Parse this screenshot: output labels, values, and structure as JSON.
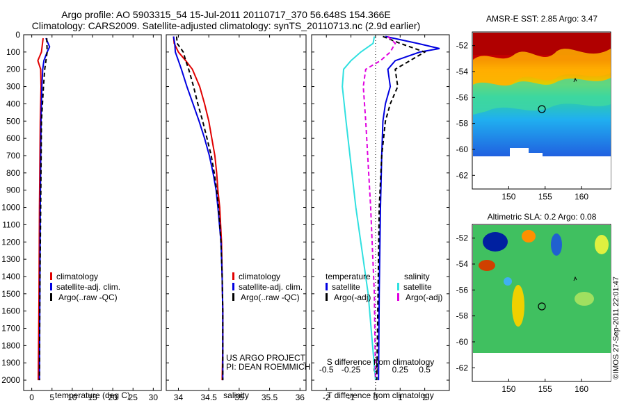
{
  "header": {
    "line1": "Argo profile: AO 5903315_54 15-Jul-2011 20110717_370 56.648S 154.366E",
    "line2": "Climatology: CARS2009. Satellite-adjusted climatology: synTS_20110713.nc (2.9d earlier)"
  },
  "colors": {
    "climatology": "#e00000",
    "satellite": "#0000e0",
    "argo": "#000000",
    "cyan": "#30e0e0",
    "magenta": "#e000e0",
    "dotted": "#000000"
  },
  "chart_data": [
    {
      "type": "line",
      "panel": "temperature",
      "xlabel": "temperature (deg C)",
      "ylabel": "",
      "xlim": [
        -2,
        32
      ],
      "ylim": [
        2060,
        0
      ],
      "x_ticks": [
        "0",
        "5",
        "10",
        "15",
        "20",
        "25",
        "30"
      ],
      "x_tick_values": [
        0,
        5,
        10,
        15,
        20,
        25,
        30
      ],
      "y_ticks": [
        "0",
        "100",
        "200",
        "300",
        "400",
        "500",
        "600",
        "700",
        "800",
        "900",
        "1000",
        "1100",
        "1200",
        "1300",
        "1400",
        "1500",
        "1600",
        "1700",
        "1800",
        "1900",
        "2000"
      ],
      "y_tick_values": [
        0,
        100,
        200,
        300,
        400,
        500,
        600,
        700,
        800,
        900,
        1000,
        1100,
        1200,
        1300,
        1400,
        1500,
        1600,
        1700,
        1800,
        1900,
        2000
      ],
      "legend": {
        "position": "center",
        "entries": [
          "climatology",
          "satellite-adj. clim.",
          "Argo(..raw -QC)"
        ]
      },
      "series": [
        {
          "name": "climatology",
          "color": "climatology",
          "dash": "none",
          "depth": [
            20,
            100,
            150,
            200,
            300,
            500,
            1000,
            1500,
            2000
          ],
          "values": [
            2.8,
            2.4,
            1.5,
            2.2,
            2.3,
            2.1,
            1.9,
            1.8,
            1.6
          ]
        },
        {
          "name": "satellite-adj. clim.",
          "color": "satellite",
          "dash": "none",
          "depth": [
            20,
            70,
            100,
            150,
            200,
            300,
            500,
            1000,
            1500,
            2000
          ],
          "values": [
            3.5,
            4.4,
            3.8,
            3.0,
            2.7,
            2.5,
            2.3,
            2.1,
            2.0,
            1.9
          ]
        },
        {
          "name": "Argo(..raw -QC)",
          "color": "argo",
          "dash": "dashed",
          "depth": [
            20,
            100,
            200,
            300,
            500,
            1000,
            1500,
            2000
          ],
          "values": [
            3.7,
            3.8,
            3.2,
            2.9,
            2.4,
            2.2,
            2.0,
            1.9
          ]
        }
      ]
    },
    {
      "type": "line",
      "panel": "salinity",
      "xlabel": "salinity",
      "xlim": [
        33.8,
        36.1
      ],
      "ylim": [
        2060,
        0
      ],
      "x_ticks": [
        "34",
        "34.5",
        "35",
        "35.5",
        "36"
      ],
      "x_tick_values": [
        34,
        34.5,
        35,
        35.5,
        36
      ],
      "legend": {
        "position": "center",
        "entries": [
          "climatology",
          "satellite-adj. clim.",
          "Argo(..raw -QC)"
        ]
      },
      "series": [
        {
          "name": "climatology",
          "color": "climatology",
          "dash": "none",
          "depth": [
            10,
            50,
            100,
            150,
            200,
            300,
            400,
            500,
            600,
            700,
            800,
            900,
            1000,
            1200,
            1400,
            1600,
            1800,
            2000
          ],
          "values": [
            33.92,
            33.93,
            34.0,
            34.12,
            34.23,
            34.35,
            34.43,
            34.5,
            34.55,
            34.6,
            34.63,
            34.65,
            34.68,
            34.71,
            34.72,
            34.73,
            34.73,
            34.72
          ]
        },
        {
          "name": "satellite-adj. clim.",
          "color": "satellite",
          "dash": "none",
          "depth": [
            10,
            50,
            100,
            150,
            200,
            300,
            400,
            500,
            600,
            700,
            800,
            900,
            1000,
            1200,
            1400,
            1600,
            1800,
            2000
          ],
          "values": [
            33.92,
            33.94,
            33.95,
            34.0,
            34.05,
            34.14,
            34.24,
            34.34,
            34.43,
            34.51,
            34.57,
            34.62,
            34.65,
            34.7,
            34.72,
            34.73,
            34.73,
            34.73
          ]
        },
        {
          "name": "Argo(..raw -QC)",
          "color": "argo",
          "dash": "dashed",
          "depth": [
            10,
            50,
            100,
            150,
            200,
            300,
            400,
            500,
            600,
            700,
            800,
            900,
            1000,
            1200,
            1400,
            1600,
            1800,
            2000
          ],
          "values": [
            33.97,
            33.98,
            34.08,
            34.12,
            34.17,
            34.25,
            34.32,
            34.4,
            34.47,
            34.54,
            34.59,
            34.63,
            34.66,
            34.7,
            34.72,
            34.73,
            34.73,
            34.73
          ]
        }
      ]
    },
    {
      "type": "line",
      "panel": "difference",
      "xlabel": "T difference from climatology",
      "xlabel_top": "S difference from climatology",
      "xlim": [
        -2.6,
        3.0
      ],
      "ylim": [
        2060,
        0
      ],
      "x_ticks": [
        "-2",
        "-1",
        "0",
        "1",
        "2"
      ],
      "x_tick_values": [
        -2,
        -1,
        0,
        1,
        2
      ],
      "s_ticks": [
        "-0.5",
        "-0.25",
        "0",
        "0.25",
        "0.5"
      ],
      "s_tick_values": [
        -0.5,
        -0.25,
        0,
        0.25,
        0.5
      ],
      "legend": {
        "position": "center",
        "temperature_title": "temperature",
        "salinity_title": "salinity",
        "temperature_entries": [
          "satellite",
          "Argo(-adj)"
        ],
        "salinity_entries": [
          "satellite",
          "Argo(-adj)"
        ]
      },
      "series": [
        {
          "name": "temperature satellite",
          "color": "satellite",
          "dash": "none",
          "depth": [
            10,
            50,
            80,
            100,
            130,
            150,
            200,
            300,
            400,
            500,
            700,
            1000,
            1500,
            2000
          ],
          "values": [
            0.4,
            1.7,
            2.6,
            1.8,
            1.2,
            0.8,
            0.5,
            0.6,
            0.4,
            0.3,
            0.25,
            0.2,
            0.15,
            0.12
          ]
        },
        {
          "name": "temperature Argo(-adj)",
          "color": "argo",
          "dash": "dashed",
          "depth": [
            10,
            50,
            100,
            150,
            200,
            300,
            400,
            500,
            700,
            1000,
            1500,
            2000
          ],
          "values": [
            0.3,
            1.0,
            2.0,
            1.4,
            0.8,
            0.9,
            0.6,
            0.4,
            0.25,
            0.15,
            0.1,
            0.05
          ]
        },
        {
          "name": "salinity satellite",
          "color": "cyan",
          "dash": "none",
          "depth": [
            10,
            50,
            100,
            150,
            200,
            300,
            500,
            1000,
            1500,
            2000
          ],
          "values": [
            -0.05,
            -0.1,
            -0.6,
            -1.0,
            -1.3,
            -1.35,
            -1.2,
            -0.8,
            -0.3,
            0.0
          ]
        },
        {
          "name": "salinity Argo(-adj)",
          "color": "magenta",
          "dash": "dashed",
          "depth": [
            10,
            50,
            100,
            150,
            200,
            300,
            500,
            1000,
            1500,
            2000
          ],
          "values": [
            0.5,
            0.8,
            0.6,
            0.2,
            -0.4,
            -0.5,
            -0.4,
            -0.2,
            -0.05,
            0.0
          ]
        }
      ]
    }
  ],
  "credit": {
    "line1": "US ARGO PROJECT",
    "line2": "PI: DEAN ROEMMICH"
  },
  "maps": [
    {
      "title": "AMSR-E SST: 2.85 Argo: 3.47",
      "y_ticks": [
        "-52",
        "-54",
        "-56",
        "-58",
        "-60",
        "-62"
      ],
      "x_ticks": [
        "150",
        "155",
        "160"
      ]
    },
    {
      "title": "Altimetric SLA: 0.2 Argo: 0.08",
      "y_ticks": [
        "-52",
        "-54",
        "-56",
        "-58",
        "-60",
        "-62"
      ],
      "x_ticks": [
        "150",
        "155",
        "160"
      ]
    }
  ],
  "stamp": "©IMOS 27-Sep-2011 22:01:47"
}
